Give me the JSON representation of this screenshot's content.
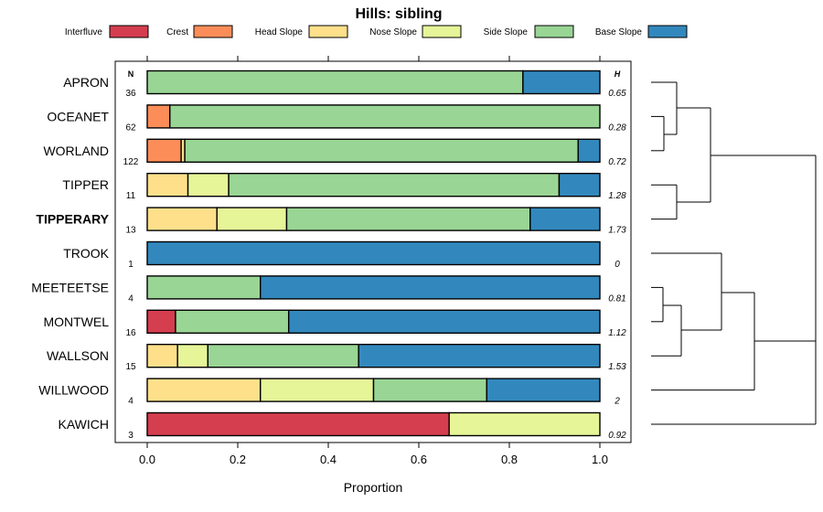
{
  "chart_data": {
    "type": "bar",
    "orientation": "horizontal",
    "stacked": true,
    "title": "Hills: sibling",
    "xlabel": "Proportion",
    "ylabel": "",
    "xlim": [
      0,
      1
    ],
    "x_ticks": [
      "0.0",
      "0.2",
      "0.4",
      "0.6",
      "0.8",
      "1.0"
    ],
    "x_tick_values": [
      0,
      0.2,
      0.4,
      0.6,
      0.8,
      1.0
    ],
    "n_header": "N",
    "h_header": "H",
    "legend_placement": "top",
    "series": [
      {
        "name": "Interfluve",
        "color": "#D53E4F"
      },
      {
        "name": "Crest",
        "color": "#FC8D59"
      },
      {
        "name": "Head Slope",
        "color": "#FEE08B"
      },
      {
        "name": "Nose Slope",
        "color": "#E6F598"
      },
      {
        "name": "Side Slope",
        "color": "#99D594"
      },
      {
        "name": "Base Slope",
        "color": "#3288BD"
      }
    ],
    "categories": [
      {
        "label": "APRON",
        "bold": false,
        "n": "36",
        "h": "0.65",
        "values": [
          0,
          0,
          0,
          0,
          0.83,
          0.17
        ]
      },
      {
        "label": "OCEANET",
        "bold": false,
        "n": "62",
        "h": "0.28",
        "values": [
          0,
          0.05,
          0,
          0,
          0.95,
          0
        ]
      },
      {
        "label": "WORLAND",
        "bold": false,
        "n": "122",
        "h": "0.72",
        "values": [
          0,
          0.075,
          0.008,
          0,
          0.869,
          0.048
        ]
      },
      {
        "label": "TIPPER",
        "bold": false,
        "n": "11",
        "h": "1.28",
        "values": [
          0,
          0,
          0.09,
          0.09,
          0.73,
          0.09
        ]
      },
      {
        "label": "TIPPERARY",
        "bold": true,
        "n": "13",
        "h": "1.73",
        "values": [
          0,
          0,
          0.154,
          0.154,
          0.538,
          0.154
        ]
      },
      {
        "label": "TROOK",
        "bold": false,
        "n": "1",
        "h": "0",
        "values": [
          0,
          0,
          0,
          0,
          0,
          1
        ]
      },
      {
        "label": "MEETEETSE",
        "bold": false,
        "n": "4",
        "h": "0.81",
        "values": [
          0,
          0,
          0,
          0,
          0.25,
          0.75
        ]
      },
      {
        "label": "MONTWEL",
        "bold": false,
        "n": "16",
        "h": "1.12",
        "values": [
          0.0625,
          0,
          0,
          0,
          0.25,
          0.6875
        ]
      },
      {
        "label": "WALLSON",
        "bold": false,
        "n": "15",
        "h": "1.53",
        "values": [
          0,
          0,
          0.067,
          0.067,
          0.333,
          0.533
        ]
      },
      {
        "label": "WILLWOOD",
        "bold": false,
        "n": "4",
        "h": "2",
        "values": [
          0,
          0,
          0.25,
          0.25,
          0.25,
          0.25
        ]
      },
      {
        "label": "KAWICH",
        "bold": false,
        "n": "3",
        "h": "0.92",
        "values": [
          0.667,
          0,
          0,
          0.333,
          0,
          0
        ]
      }
    ]
  }
}
